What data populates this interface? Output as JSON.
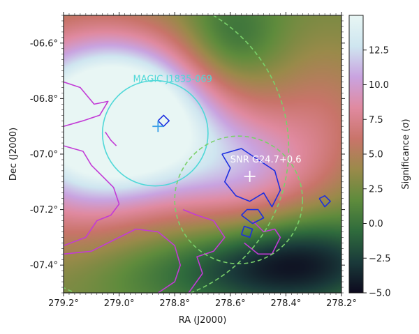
{
  "chart_data": {
    "type": "heatmap",
    "xlabel": "RA (J2000)",
    "ylabel": "Dec (J2000)",
    "xlim": [
      279.2,
      278.2
    ],
    "ylim": [
      -7.5,
      -6.5
    ],
    "xticks": [
      {
        "value": 279.2,
        "label": "279.2°"
      },
      {
        "value": 279.0,
        "label": "279.0°"
      },
      {
        "value": 278.8,
        "label": "278.8°"
      },
      {
        "value": 278.6,
        "label": "278.6°"
      },
      {
        "value": 278.4,
        "label": "278.4°"
      },
      {
        "value": 278.2,
        "label": "278.2°"
      }
    ],
    "yticks": [
      {
        "value": -6.6,
        "label": "-06.6°"
      },
      {
        "value": -6.8,
        "label": "-06.8°"
      },
      {
        "value": -7.0,
        "label": "-07.0°"
      },
      {
        "value": -7.2,
        "label": "-07.2°"
      },
      {
        "value": -7.4,
        "label": "-07.4°"
      }
    ],
    "colorbar": {
      "label": "Significance (σ)",
      "range": [
        -5.0,
        15.0
      ],
      "ticks": [
        {
          "value": -5.0,
          "label": "−5.0"
        },
        {
          "value": -2.5,
          "label": "−2.5"
        },
        {
          "value": 0.0,
          "label": "0.0"
        },
        {
          "value": 2.5,
          "label": "2.5"
        },
        {
          "value": 5.0,
          "label": "5.0"
        },
        {
          "value": 7.5,
          "label": "7.5"
        },
        {
          "value": 10.0,
          "label": "10.0"
        },
        {
          "value": 12.5,
          "label": "12.5"
        }
      ],
      "colormap": [
        "#0d0a1e",
        "#1a3a3a",
        "#2f6b3c",
        "#5e8b3c",
        "#9a8a4a",
        "#c9746a",
        "#e08aa0",
        "#c9a3e0",
        "#cfe6f0",
        "#e8f6f4"
      ]
    },
    "blobs": [
      {
        "ra": 278.98,
        "dec": -6.87,
        "sigma_ra": 0.22,
        "sigma_dec": 0.19,
        "amp": 16.0
      },
      {
        "ra": 279.22,
        "dec": -6.95,
        "sigma_ra": 0.25,
        "sigma_dec": 0.3,
        "amp": 6.0
      },
      {
        "ra": 278.55,
        "dec": -7.05,
        "sigma_ra": 0.2,
        "sigma_dec": 0.16,
        "amp": 7.0
      },
      {
        "ra": 278.62,
        "dec": -7.42,
        "sigma_ra": 0.35,
        "sigma_dec": 0.1,
        "amp": -3.0
      },
      {
        "ra": 278.35,
        "dec": -7.38,
        "sigma_ra": 0.22,
        "sigma_dec": 0.12,
        "amp": -5.0
      },
      {
        "ra": 278.6,
        "dec": -6.58,
        "sigma_ra": 0.12,
        "sigma_dec": 0.12,
        "amp": -3.0
      },
      {
        "ra": 278.25,
        "dec": -6.85,
        "sigma_ra": 0.15,
        "sigma_dec": 0.2,
        "amp": 3.0
      }
    ],
    "base_level": 2.2,
    "circles": [
      {
        "label": "MAGIC J1835-069",
        "ra": 278.87,
        "dec": -6.925,
        "r": 0.19,
        "color": "#4fd8d8",
        "dashed": false,
        "label_ra": 278.95,
        "label_dec": -6.74
      },
      {
        "label": "SNR G24.7+0.6",
        "ra": 278.57,
        "dec": -7.165,
        "r": 0.23,
        "color": "#7ad06a",
        "dashed": true,
        "label_ra": 278.6,
        "label_dec": -7.03
      },
      {
        "label": "",
        "ra": 278.95,
        "dec": -6.98,
        "r": 0.56,
        "color": "#7ad06a",
        "dashed": true
      }
    ],
    "markers": [
      {
        "name": "magic-source-marker",
        "ra": 278.86,
        "dec": -6.9,
        "color": "#3aa0e8"
      },
      {
        "name": "snr-center-marker",
        "ra": 278.53,
        "dec": -7.08,
        "color": "#ffffff"
      }
    ],
    "contours_magenta": [
      [
        [
          279.2,
          -6.74
        ],
        [
          279.14,
          -6.76
        ],
        [
          279.09,
          -6.82
        ],
        [
          279.04,
          -6.81
        ],
        [
          279.07,
          -6.86
        ],
        [
          279.13,
          -6.88
        ],
        [
          279.2,
          -6.9
        ]
      ],
      [
        [
          279.2,
          -6.97
        ],
        [
          279.13,
          -6.99
        ],
        [
          279.1,
          -7.04
        ],
        [
          279.06,
          -7.08
        ],
        [
          279.02,
          -7.12
        ],
        [
          279.0,
          -7.18
        ],
        [
          279.03,
          -7.22
        ],
        [
          279.08,
          -7.24
        ],
        [
          279.12,
          -7.3
        ],
        [
          279.2,
          -7.33
        ]
      ],
      [
        [
          279.2,
          -7.36
        ],
        [
          279.1,
          -7.35
        ],
        [
          279.02,
          -7.31
        ],
        [
          278.94,
          -7.27
        ],
        [
          278.86,
          -7.28
        ],
        [
          278.8,
          -7.33
        ],
        [
          278.78,
          -7.4
        ],
        [
          278.8,
          -7.46
        ],
        [
          278.86,
          -7.5
        ]
      ],
      [
        [
          278.77,
          -7.2
        ],
        [
          278.72,
          -7.22
        ],
        [
          278.66,
          -7.24
        ],
        [
          278.62,
          -7.3
        ],
        [
          278.66,
          -7.35
        ],
        [
          278.72,
          -7.37
        ],
        [
          278.7,
          -7.43
        ],
        [
          278.75,
          -7.5
        ]
      ],
      [
        [
          279.05,
          -6.92
        ],
        [
          279.03,
          -6.95
        ],
        [
          279.01,
          -6.97
        ]
      ],
      [
        [
          278.52,
          -7.24
        ],
        [
          278.48,
          -7.28
        ],
        [
          278.44,
          -7.27
        ],
        [
          278.42,
          -7.3
        ],
        [
          278.45,
          -7.36
        ],
        [
          278.5,
          -7.36
        ],
        [
          278.55,
          -7.32
        ]
      ]
    ],
    "contours_blue": [
      [
        [
          278.63,
          -7.0
        ],
        [
          278.6,
          -7.05
        ],
        [
          278.62,
          -7.1
        ],
        [
          278.58,
          -7.15
        ],
        [
          278.53,
          -7.17
        ],
        [
          278.48,
          -7.14
        ],
        [
          278.45,
          -7.19
        ],
        [
          278.42,
          -7.13
        ],
        [
          278.44,
          -7.06
        ],
        [
          278.5,
          -7.02
        ],
        [
          278.56,
          -6.98
        ],
        [
          278.63,
          -7.0
        ]
      ],
      [
        [
          278.86,
          -6.88
        ],
        [
          278.84,
          -6.9
        ],
        [
          278.82,
          -6.88
        ],
        [
          278.84,
          -6.86
        ],
        [
          278.86,
          -6.88
        ]
      ],
      [
        [
          278.56,
          -7.22
        ],
        [
          278.52,
          -7.25
        ],
        [
          278.48,
          -7.23
        ],
        [
          278.5,
          -7.2
        ],
        [
          278.54,
          -7.2
        ],
        [
          278.56,
          -7.22
        ]
      ],
      [
        [
          278.56,
          -7.29
        ],
        [
          278.53,
          -7.3
        ],
        [
          278.52,
          -7.27
        ],
        [
          278.55,
          -7.26
        ],
        [
          278.56,
          -7.29
        ]
      ],
      [
        [
          278.28,
          -7.16
        ],
        [
          278.26,
          -7.19
        ],
        [
          278.24,
          -7.17
        ],
        [
          278.26,
          -7.15
        ],
        [
          278.28,
          -7.16
        ]
      ]
    ]
  }
}
